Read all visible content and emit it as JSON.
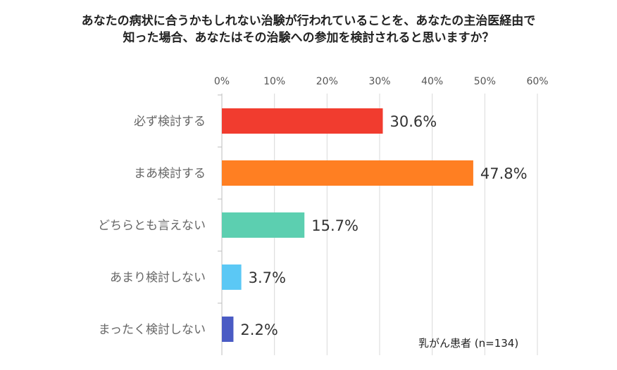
{
  "title_lines": [
    "あなたの病状に合うかもしれない治験が行われていることを、あなたの主治医経由で",
    "知った場合、あなたはその治験への参加を検討されると思いますか？"
  ],
  "note": "乳がん患者 (n=134)",
  "chart_data": {
    "type": "bar",
    "orientation": "horizontal",
    "categories": [
      "必ず検討する",
      "まあ検討する",
      "どちらとも言えない",
      "あまり検討しない",
      "まったく検討しない"
    ],
    "values": [
      30.6,
      47.8,
      15.7,
      3.7,
      2.2
    ],
    "value_labels": [
      "30.6%",
      "47.8%",
      "15.7%",
      "3.7%",
      "2.2%"
    ],
    "colors": [
      "#f13c2f",
      "#ff7f22",
      "#5ccfb0",
      "#5bc8f5",
      "#4a5bc4"
    ],
    "xlim": [
      0,
      60
    ],
    "ticks": [
      0,
      10,
      20,
      30,
      40,
      50,
      60
    ],
    "tick_labels": [
      "0%",
      "10%",
      "20%",
      "30%",
      "40%",
      "50%",
      "60%"
    ],
    "grid": true
  }
}
